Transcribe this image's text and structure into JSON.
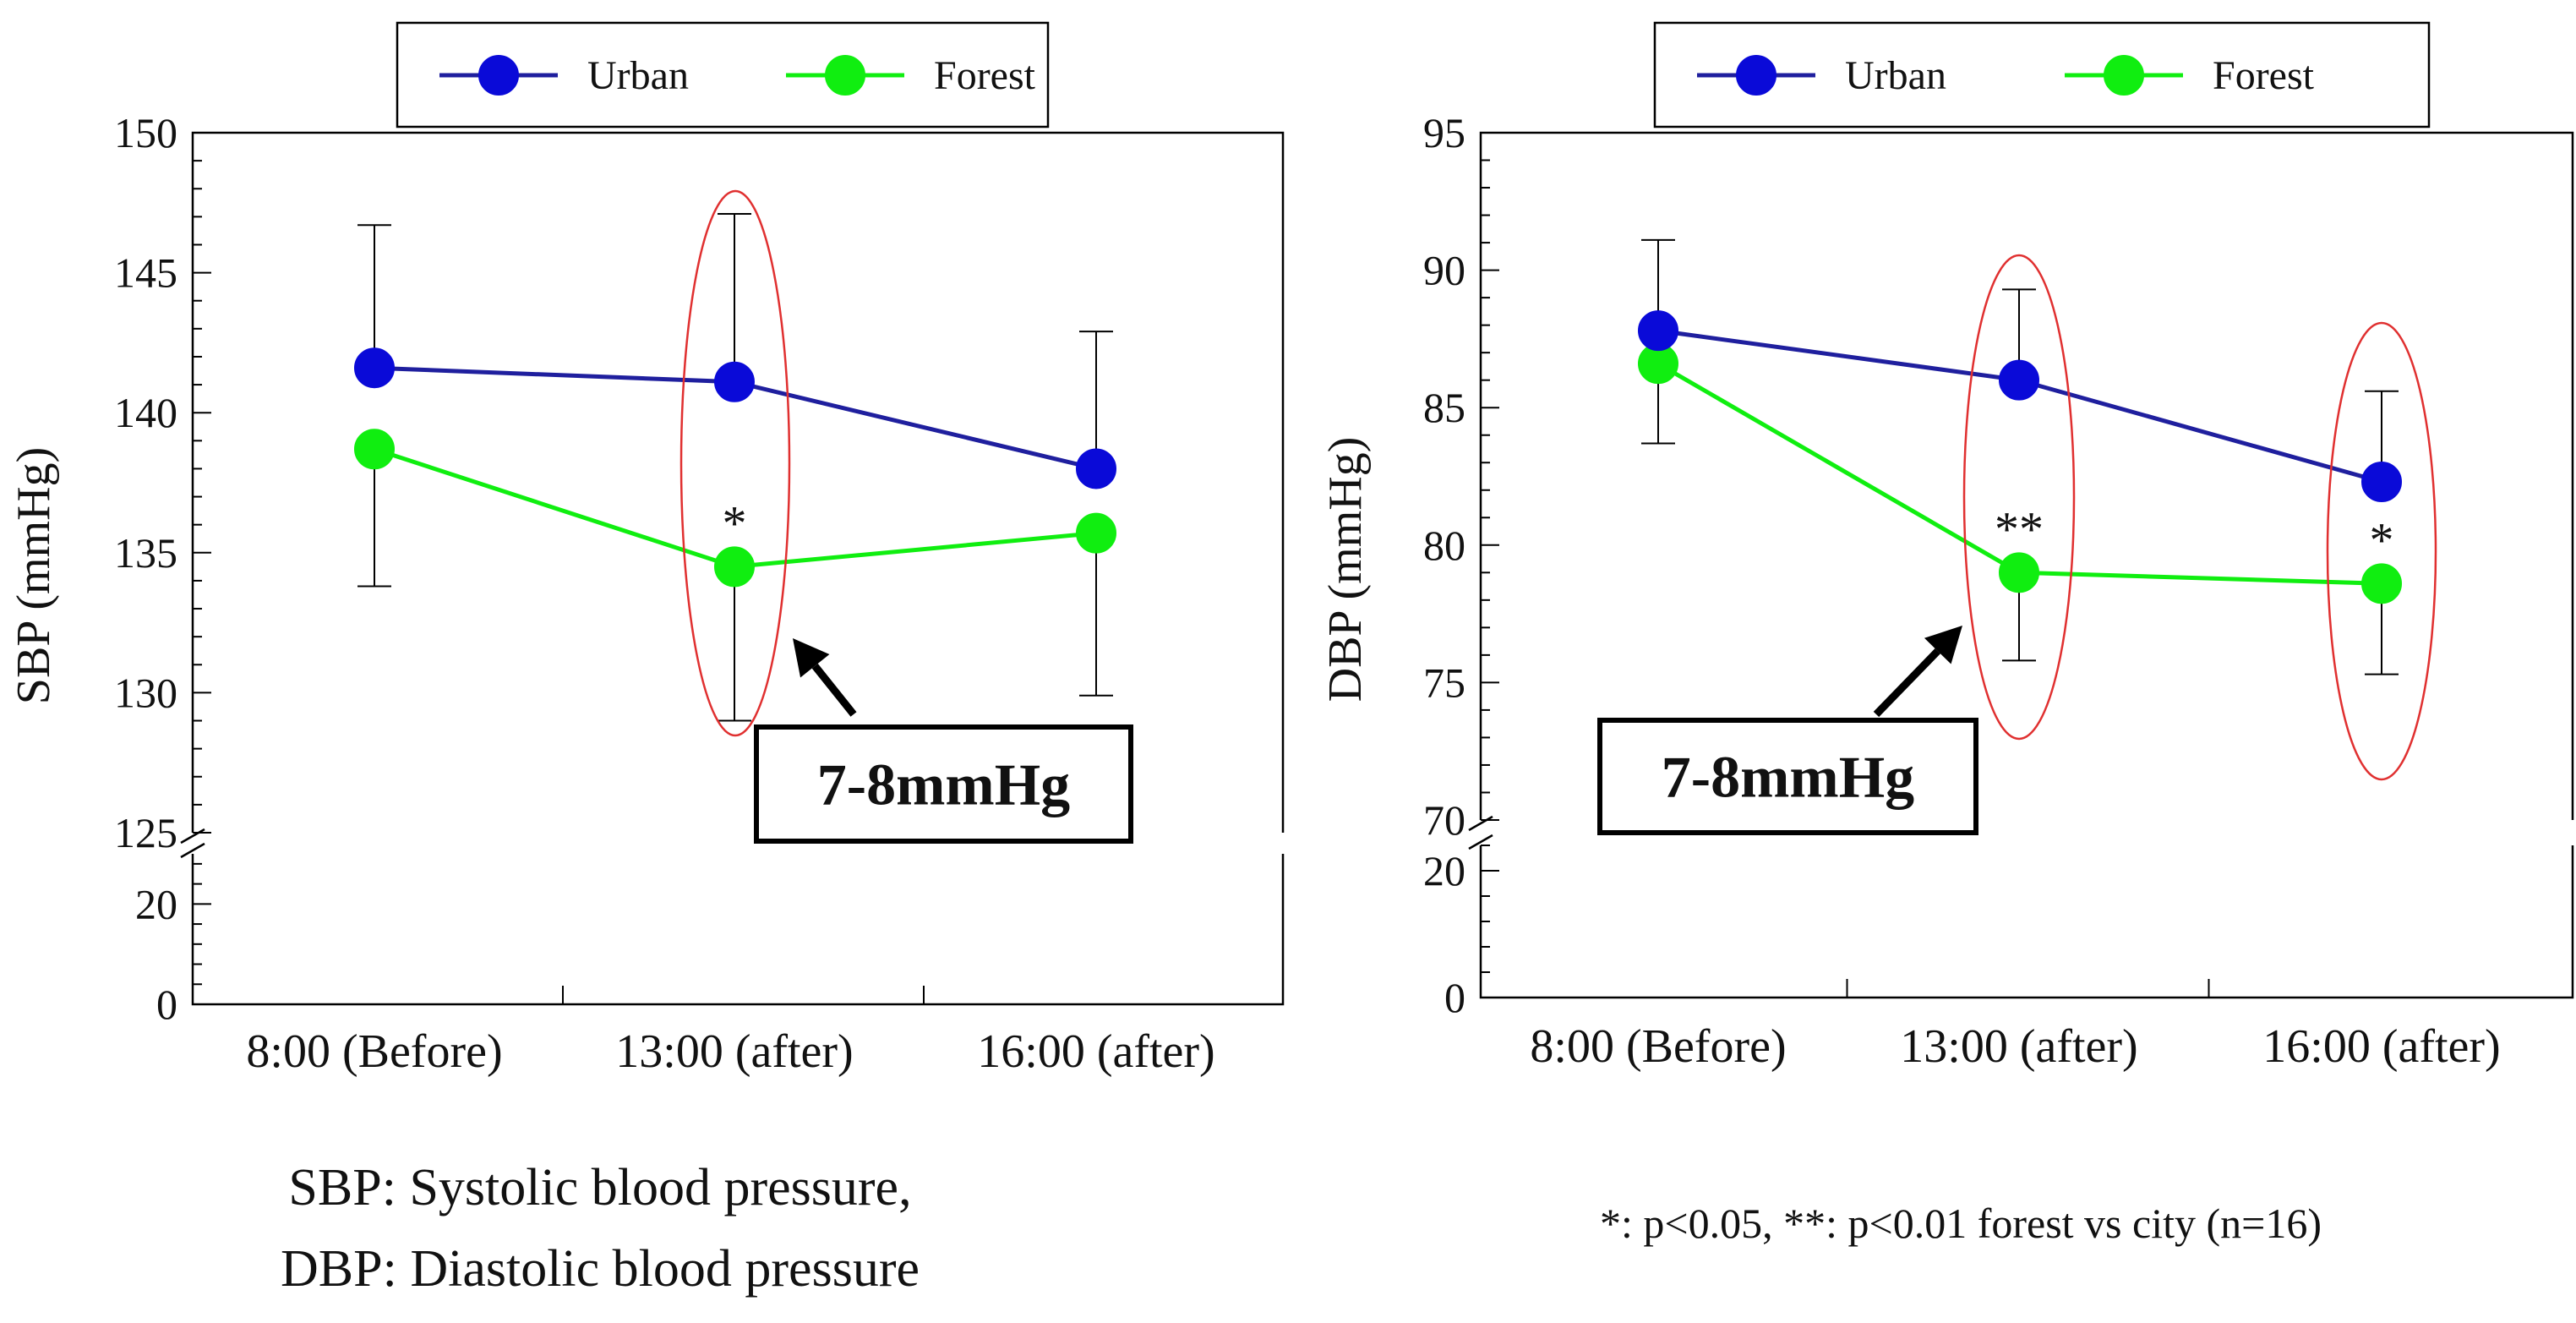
{
  "colors": {
    "urban": "#0a0ad8",
    "urban_line": "#1f1f9e",
    "forest": "#10ee10",
    "ellipse": "#e03030"
  },
  "chart_data": [
    {
      "type": "line",
      "ylabel": "SBP (mmHg)",
      "categories": [
        "8:00 (Before)",
        "13:00 (after)",
        "16:00 (after)"
      ],
      "upper_axis": {
        "ylim": [
          125,
          150
        ],
        "ticks": [
          "150",
          "145",
          "140",
          "135",
          "130",
          "125"
        ]
      },
      "lower_axis": {
        "ylim": [
          0,
          30
        ],
        "ticks": [
          "20",
          "0"
        ]
      },
      "legend": [
        "Urban",
        "Forest"
      ],
      "series": [
        {
          "name": "Urban",
          "values": [
            141.6,
            141.1,
            138.0
          ],
          "err_up": [
            146.7,
            147.1,
            142.9
          ],
          "err_down": [
            null,
            null,
            null
          ]
        },
        {
          "name": "Forest",
          "values": [
            138.7,
            134.5,
            135.7
          ],
          "err_up": [
            null,
            null,
            null
          ],
          "err_down": [
            133.8,
            129.0,
            129.9
          ]
        }
      ],
      "significance": [
        "",
        "*",
        ""
      ],
      "highlight_categories": [
        1
      ],
      "callout": {
        "label": "7-8mmHg",
        "target_category": 1
      }
    },
    {
      "type": "line",
      "ylabel": "DBP (mmHg)",
      "categories": [
        "8:00 (Before)",
        "13:00 (after)",
        "16:00 (after)"
      ],
      "upper_axis": {
        "ylim": [
          70,
          95
        ],
        "ticks": [
          "95",
          "90",
          "85",
          "80",
          "75",
          "70"
        ]
      },
      "lower_axis": {
        "ylim": [
          0,
          24
        ],
        "ticks": [
          "20",
          "0"
        ]
      },
      "legend": [
        "Urban",
        "Forest"
      ],
      "series": [
        {
          "name": "Urban",
          "values": [
            87.8,
            86.0,
            82.3
          ],
          "err_up": [
            91.1,
            89.3,
            85.6
          ],
          "err_down": [
            null,
            null,
            null
          ]
        },
        {
          "name": "Forest",
          "values": [
            86.6,
            79.0,
            78.6
          ],
          "err_up": [
            null,
            null,
            null
          ],
          "err_down": [
            83.7,
            75.8,
            75.3
          ]
        }
      ],
      "significance": [
        "",
        "**",
        "*"
      ],
      "highlight_categories": [
        1,
        2
      ],
      "callout": {
        "label": "7-8mmHg",
        "target_category": 1
      }
    }
  ],
  "footnotes": {
    "abbrev_line1": "SBP: Systolic blood pressure,",
    "abbrev_line2": "DBP: Diastolic blood pressure",
    "significance_note": "*: p<0.05, **: p<0.01 forest vs city (n=16)"
  }
}
